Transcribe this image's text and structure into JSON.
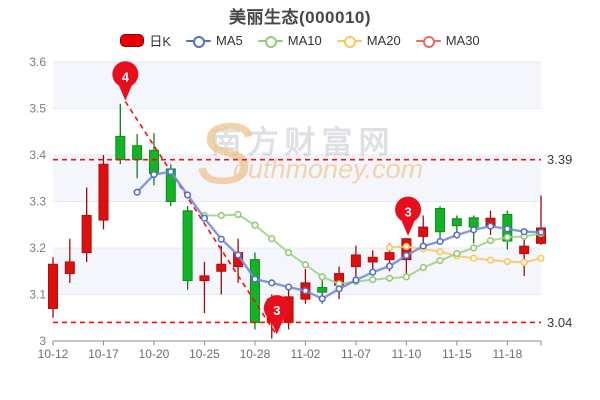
{
  "title": "美丽生态(000010)",
  "legend": [
    {
      "label": "日K",
      "icon": "candle-swatch",
      "color": "#e60000",
      "border_color": "#8b0000"
    },
    {
      "label": "MA5",
      "icon": "line-marker",
      "color": "#5470c6"
    },
    {
      "label": "MA10",
      "icon": "line-marker",
      "color": "#91cc75"
    },
    {
      "label": "MA20",
      "icon": "line-marker",
      "color": "#fac858"
    },
    {
      "label": "MA30",
      "icon": "line-marker",
      "color": "#ee6666"
    }
  ],
  "watermark": {
    "cn_text": "南方财富网",
    "swoosh_letter": "S",
    "en_text": "outhmoney.com"
  },
  "y_axis": {
    "min": 3.0,
    "max": 3.6,
    "tick_labels": [
      "3",
      "3.1",
      "3.2",
      "3.3",
      "3.4",
      "3.5",
      "3.6"
    ]
  },
  "x_axis": {
    "tick_labels": [
      "10-12",
      "10-17",
      "10-20",
      "10-25",
      "10-28",
      "11-02",
      "11-07",
      "11-10",
      "11-15",
      "11-18"
    ],
    "label_every": 3
  },
  "chart_data": {
    "type": "candlestick",
    "dates": [
      "10-12",
      "10-13",
      "10-14",
      "10-17",
      "10-18",
      "10-19",
      "10-20",
      "10-21",
      "10-24",
      "10-25",
      "10-26",
      "10-27",
      "10-28",
      "10-31",
      "11-01",
      "11-02",
      "11-03",
      "11-04",
      "11-07",
      "11-08",
      "11-09",
      "11-10",
      "11-11",
      "11-14",
      "11-15",
      "11-16",
      "11-17",
      "11-18",
      "11-21",
      "11-22"
    ],
    "up_color": "#dd0f0f",
    "up_border": "#b30b0b",
    "up_wick": "#9a0b0b",
    "down_color": "#12b324",
    "down_border": "#0e8c1c",
    "down_wick": "#0c7f16",
    "candles": [
      {
        "o": 3.07,
        "c": 3.165,
        "l": 3.05,
        "h": 3.18
      },
      {
        "o": 3.145,
        "c": 3.17,
        "l": 3.125,
        "h": 3.22
      },
      {
        "o": 3.19,
        "c": 3.27,
        "l": 3.17,
        "h": 3.33
      },
      {
        "o": 3.26,
        "c": 3.38,
        "l": 3.24,
        "h": 3.4
      },
      {
        "o": 3.44,
        "c": 3.39,
        "l": 3.38,
        "h": 3.51
      },
      {
        "o": 3.42,
        "c": 3.39,
        "l": 3.35,
        "h": 3.445
      },
      {
        "o": 3.41,
        "c": 3.36,
        "l": 3.335,
        "h": 3.447
      },
      {
        "o": 3.37,
        "c": 3.3,
        "l": 3.29,
        "h": 3.38
      },
      {
        "o": 3.28,
        "c": 3.13,
        "l": 3.11,
        "h": 3.29
      },
      {
        "o": 3.13,
        "c": 3.14,
        "l": 3.06,
        "h": 3.17
      },
      {
        "o": 3.15,
        "c": 3.165,
        "l": 3.1,
        "h": 3.205
      },
      {
        "o": 3.16,
        "c": 3.19,
        "l": 3.125,
        "h": 3.22
      },
      {
        "o": 3.175,
        "c": 3.04,
        "l": 3.025,
        "h": 3.19
      },
      {
        "o": 3.04,
        "c": 3.09,
        "l": 3.005,
        "h": 3.1
      },
      {
        "o": 3.04,
        "c": 3.095,
        "l": 3.025,
        "h": 3.115
      },
      {
        "o": 3.09,
        "c": 3.125,
        "l": 3.08,
        "h": 3.155
      },
      {
        "o": 3.115,
        "c": 3.105,
        "l": 3.08,
        "h": 3.14
      },
      {
        "o": 3.12,
        "c": 3.145,
        "l": 3.09,
        "h": 3.16
      },
      {
        "o": 3.16,
        "c": 3.185,
        "l": 3.13,
        "h": 3.205
      },
      {
        "o": 3.17,
        "c": 3.18,
        "l": 3.145,
        "h": 3.195
      },
      {
        "o": 3.175,
        "c": 3.19,
        "l": 3.15,
        "h": 3.21
      },
      {
        "o": 3.175,
        "c": 3.22,
        "l": 3.14,
        "h": 3.22
      },
      {
        "o": 3.225,
        "c": 3.245,
        "l": 3.205,
        "h": 3.27
      },
      {
        "o": 3.285,
        "c": 3.235,
        "l": 3.215,
        "h": 3.29
      },
      {
        "o": 3.263,
        "c": 3.248,
        "l": 3.22,
        "h": 3.27
      },
      {
        "o": 3.265,
        "c": 3.245,
        "l": 3.21,
        "h": 3.27
      },
      {
        "o": 3.248,
        "c": 3.264,
        "l": 3.228,
        "h": 3.28
      },
      {
        "o": 3.272,
        "c": 3.215,
        "l": 3.197,
        "h": 3.28
      },
      {
        "o": 3.188,
        "c": 3.204,
        "l": 3.14,
        "h": 3.23
      },
      {
        "o": 3.21,
        "c": 3.243,
        "l": 3.207,
        "h": 3.313
      }
    ],
    "ma5": {
      "start_index": 5,
      "color": "#5470c6",
      "line_color": "#748fd8",
      "values": [
        3.32,
        3.358,
        3.364,
        3.314,
        3.264,
        3.219,
        3.185,
        3.133,
        3.125,
        3.116,
        3.108,
        3.091,
        3.112,
        3.131,
        3.148,
        3.161,
        3.184,
        3.204,
        3.214,
        3.228,
        3.239,
        3.247,
        3.241,
        3.235,
        3.234
      ]
    },
    "ma10": {
      "start_index": 9,
      "color": "#91cc75",
      "line_color": "#a0d28d",
      "values": [
        3.27,
        3.27,
        3.272,
        3.249,
        3.22,
        3.19,
        3.164,
        3.138,
        3.123,
        3.128,
        3.132,
        3.135,
        3.138,
        3.158,
        3.173,
        3.188,
        3.2,
        3.216,
        3.223,
        3.225,
        3.231
      ]
    },
    "ma20": {
      "start_index": 20,
      "color": "#fac858",
      "line_color": "#f8c967",
      "values": [
        3.201,
        3.203,
        3.198,
        3.192,
        3.183,
        3.178,
        3.174,
        3.171,
        3.169,
        3.178
      ]
    },
    "ma30": {
      "start_index": null,
      "color": "#ee6666",
      "values": []
    },
    "ref_lines": [
      {
        "label": "3.39",
        "price": 3.39
      },
      {
        "label": "3.04",
        "price": 3.04
      }
    ],
    "trendline": {
      "from_index": 4.3,
      "from_price": 3.515,
      "to_index": 13.3,
      "to_price": 3.012
    },
    "markers": [
      {
        "label": "4",
        "index": 4.3,
        "price": 3.515
      },
      {
        "label": "3",
        "index": 13.3,
        "price": 3.012
      },
      {
        "label": "3",
        "index": 21.1,
        "price": 3.224
      }
    ],
    "marker_color": "#e80e1e",
    "ref_color": "#fb0d0d",
    "band_color": "#f4f6fb",
    "grid_color": "#e5e9f2",
    "axis_color": "#868b95",
    "axis_label_color": "#767c88"
  }
}
